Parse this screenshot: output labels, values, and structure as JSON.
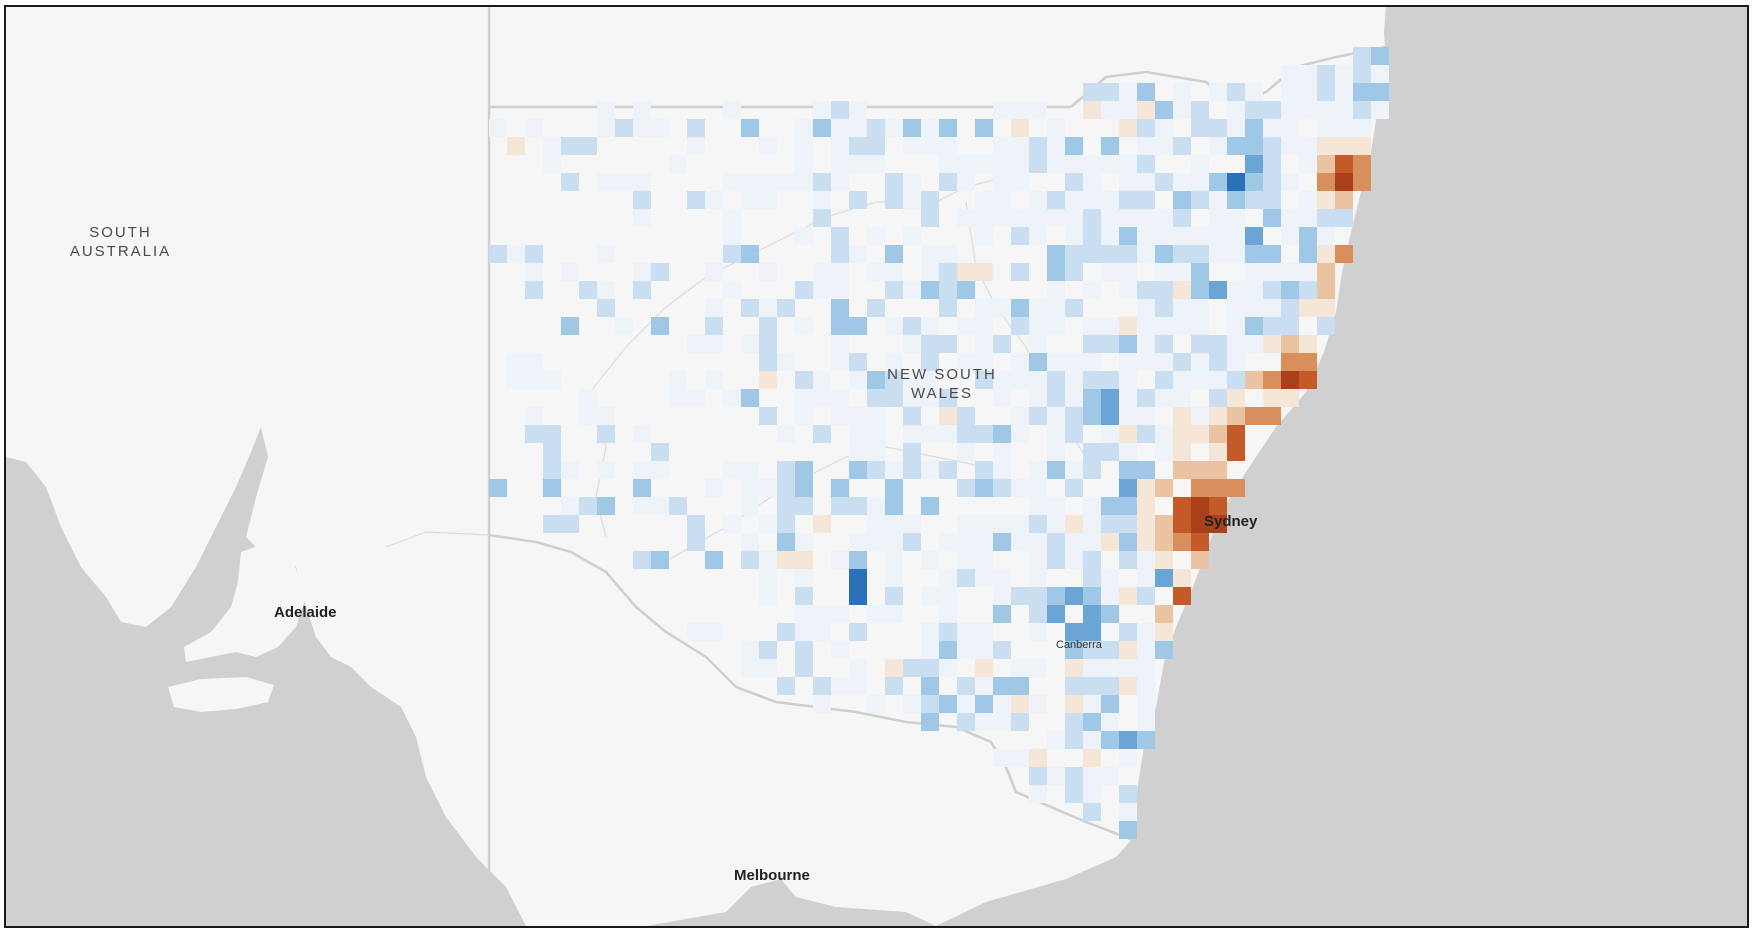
{
  "map": {
    "colors": {
      "land": "#f6f6f6",
      "sea": "#d0d0d0",
      "boundary": "#c8c8c8",
      "positive_scale": [
        "#eef2f9",
        "#c9def0",
        "#9ec8e6",
        "#6aa5d6",
        "#2b71b8"
      ],
      "negative_scale": [
        "#f5e6d8",
        "#e9c3a2",
        "#d98f5c",
        "#c45a27",
        "#a9401a"
      ]
    },
    "labels": {
      "south_australia": "SOUTH\nAUSTRALIA",
      "nsw": "NEW SOUTH\nWALES",
      "adelaide": "Adelaide",
      "sydney": "Sydney",
      "canberra": "Canberra",
      "melbourne": "Melbourne"
    }
  }
}
